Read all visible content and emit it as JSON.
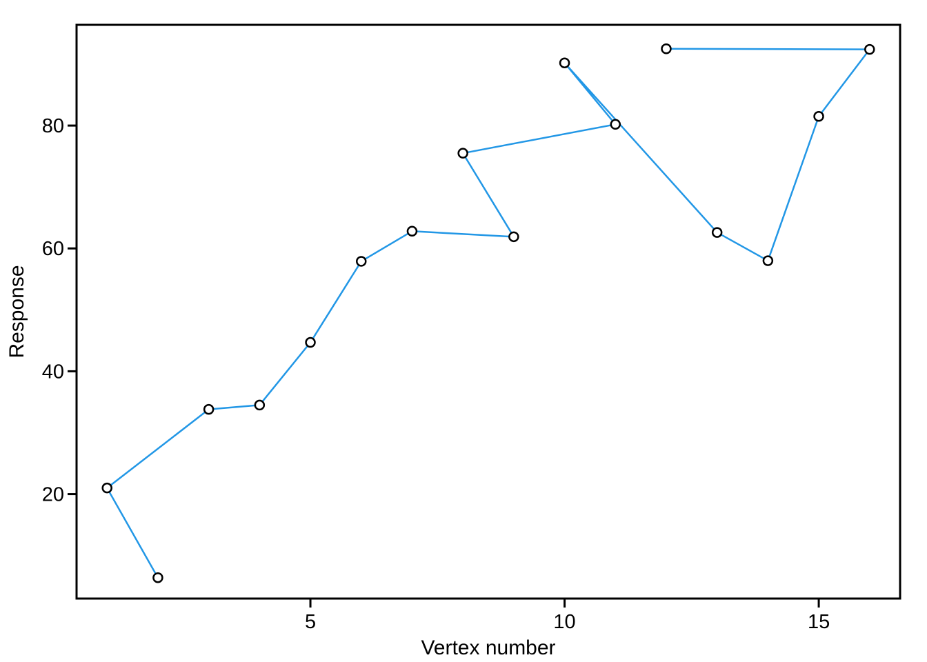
{
  "chart_data": {
    "type": "line",
    "title": "",
    "xlabel": "Vertex number",
    "ylabel": "Response",
    "x": [
      1,
      2,
      3,
      4,
      5,
      6,
      7,
      8,
      9,
      10,
      11,
      12,
      13,
      14,
      15,
      16
    ],
    "y": [
      21.0,
      6.4,
      33.8,
      34.5,
      44.7,
      57.9,
      62.8,
      75.5,
      61.9,
      90.2,
      80.2,
      92.5,
      62.6,
      58.0,
      81.5,
      92.4
    ],
    "draw_order": [
      2,
      1,
      3,
      4,
      5,
      6,
      7,
      9,
      8,
      11,
      10,
      13,
      14,
      15,
      16,
      12
    ],
    "xticks": [
      5,
      10,
      15
    ],
    "xtick_labels": [
      "5",
      "10",
      "15"
    ],
    "yticks": [
      20,
      40,
      60,
      80
    ],
    "ytick_labels": [
      "20",
      "40",
      "60",
      "80"
    ],
    "xlim": [
      0.4,
      16.6
    ],
    "ylim": [
      3.0,
      96.4
    ],
    "grid": false,
    "legend": "none",
    "marker": "open-circle",
    "line_color": "#2297E6",
    "point_stroke_color": "#000000",
    "point_fill_color": "#ffffff",
    "axis_color": "#000000",
    "background_color": "#ffffff"
  }
}
